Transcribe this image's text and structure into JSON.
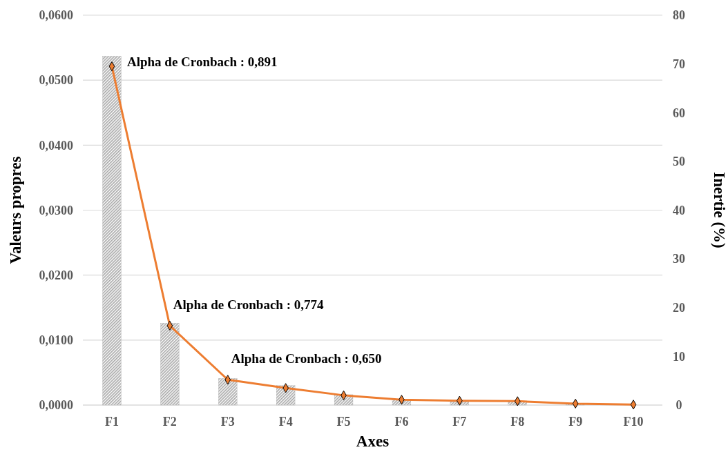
{
  "chart_data": {
    "type": "bar",
    "xlabel": "Axes",
    "ylabel": "Valeurs propres",
    "y2label": "Inertie (%)",
    "categories": [
      "F1",
      "F2",
      "F3",
      "F4",
      "F5",
      "F6",
      "F7",
      "F8",
      "F9",
      "F10"
    ],
    "series": [
      {
        "color": "#a6a6a6",
        "values": [
          0.0537,
          0.0126,
          0.0041,
          0.003,
          0.0016,
          0.0009,
          0.0005,
          0.0005,
          0.0001,
          0.0
        ]
      },
      {
        "type": "line",
        "axis": "y2",
        "color": "#ed7d31",
        "marker": "diamond",
        "values": [
          69.5,
          16.3,
          5.2,
          3.5,
          2.0,
          1.1,
          0.9,
          0.8,
          0.3,
          0.1
        ]
      }
    ],
    "ylim": [
      0,
      0.06
    ],
    "yticks": [
      {
        "value": 0,
        "label": "0,0000"
      },
      {
        "value": 0.01,
        "label": "0,0100"
      },
      {
        "value": 0.02,
        "label": "0,0200"
      },
      {
        "value": 0.03,
        "label": "0,0300"
      },
      {
        "value": 0.04,
        "label": "0,0400"
      },
      {
        "value": 0.05,
        "label": "0,0500"
      },
      {
        "value": 0.06,
        "label": "0,0600"
      }
    ],
    "y2lim": [
      0,
      80
    ],
    "y2ticks": [
      0,
      10,
      20,
      30,
      40,
      50,
      60,
      70,
      80
    ],
    "grid": "y",
    "annotations": [
      "Alpha de Cronbach : 0,891",
      "Alpha de Cronbach : 0,774",
      "Alpha de Cronbach : 0,650"
    ]
  }
}
